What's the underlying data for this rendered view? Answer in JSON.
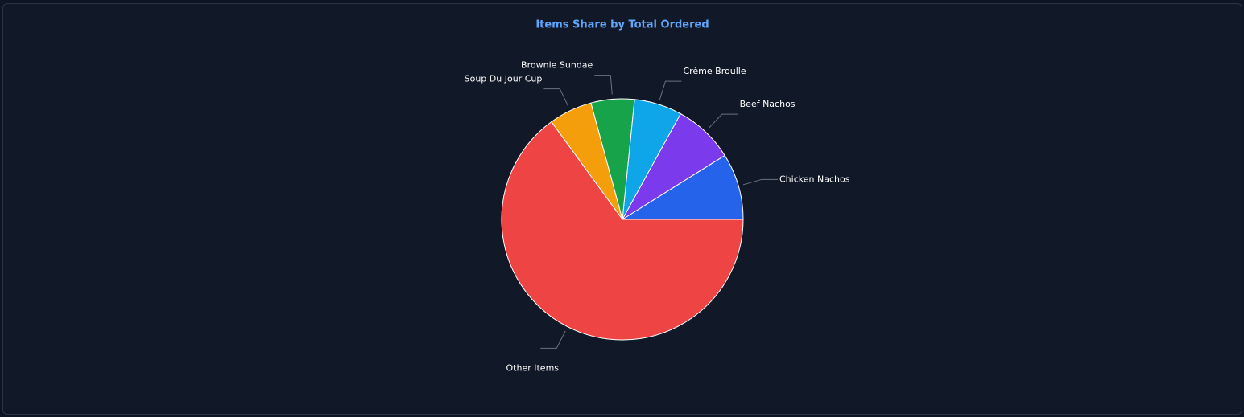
{
  "chart_data": {
    "type": "pie",
    "title": "Items Share by Total Ordered",
    "categories": [
      "Chicken Nachos",
      "Beef Nachos",
      "Crème Broulle",
      "Brownie Sundae",
      "Soup Du Jour Cup",
      "Other Items"
    ],
    "values": [
      8.9,
      8.1,
      6.4,
      5.8,
      5.8,
      65.0
    ],
    "colors": [
      "#2563eb",
      "#7c3aed",
      "#0ea5e9",
      "#16a34a",
      "#f59e0b",
      "#ef4444"
    ]
  }
}
